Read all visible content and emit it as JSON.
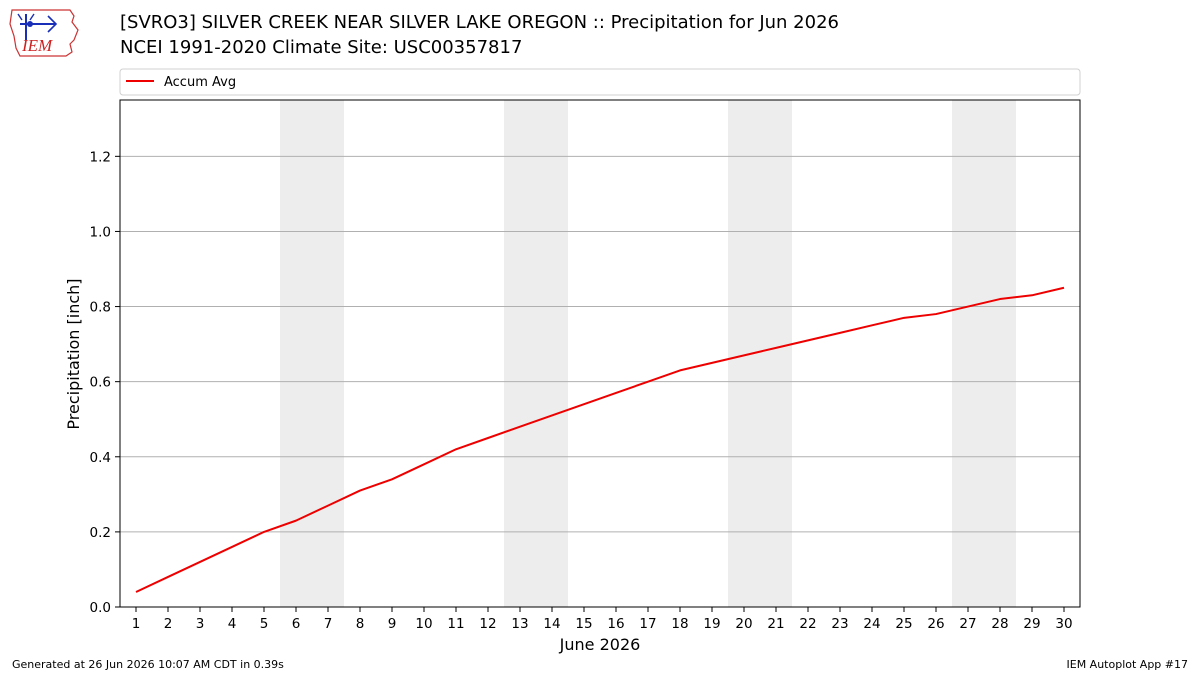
{
  "header": {
    "title_line1": "[SVRO3] SILVER CREEK NEAR SILVER LAKE  OREGON :: Precipitation for Jun 2026",
    "title_line2": "NCEI 1991-2020 Climate Site: USC00357817"
  },
  "logo": {
    "text": "IEM",
    "icon": "iem-iowa-logo-icon"
  },
  "footer": {
    "generated": "Generated at 26 Jun 2026 10:07 AM CDT in 0.39s",
    "app": "IEM Autoplot App #17"
  },
  "colors": {
    "series": "#ee0000",
    "weekend_band": "#ededed",
    "grid": "#b0b0b0"
  },
  "chart_data": {
    "type": "line",
    "title": "[SVRO3] SILVER CREEK NEAR SILVER LAKE  OREGON :: Precipitation for Jun 2026",
    "xlabel": "June 2026",
    "ylabel": "Precipitation [inch]",
    "x": [
      1,
      2,
      3,
      4,
      5,
      6,
      7,
      8,
      9,
      10,
      11,
      12,
      13,
      14,
      15,
      16,
      17,
      18,
      19,
      20,
      21,
      22,
      23,
      24,
      25,
      26,
      27,
      28,
      29,
      30
    ],
    "xlim": [
      0.5,
      30.5
    ],
    "ylim": [
      0,
      1.35
    ],
    "yticks": [
      0.0,
      0.2,
      0.4,
      0.6,
      0.8,
      1.0,
      1.2
    ],
    "ytick_labels": [
      "0.0",
      "0.2",
      "0.4",
      "0.6",
      "0.8",
      "1.0",
      "1.2"
    ],
    "grid": "horizontal",
    "legend_position": "top",
    "shaded_days": [
      [
        6,
        7
      ],
      [
        13,
        14
      ],
      [
        20,
        21
      ],
      [
        27,
        28
      ]
    ],
    "series": [
      {
        "name": "Accum Avg",
        "values": [
          0.04,
          0.08,
          0.12,
          0.16,
          0.2,
          0.23,
          0.27,
          0.31,
          0.34,
          0.38,
          0.42,
          0.45,
          0.48,
          0.51,
          0.54,
          0.57,
          0.6,
          0.63,
          0.65,
          0.67,
          0.69,
          0.71,
          0.73,
          0.75,
          0.77,
          0.78,
          0.8,
          0.82,
          0.83,
          0.85
        ]
      }
    ]
  }
}
